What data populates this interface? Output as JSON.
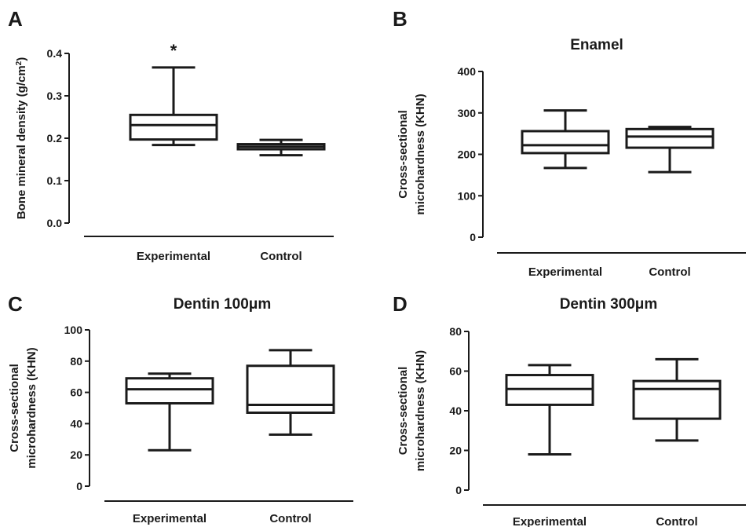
{
  "chart_data": [
    {
      "panel": "A",
      "type": "box",
      "title": "",
      "xlabel": "",
      "ylabel": "Bone mineral density (g/cm",
      "ylabel_sup": "2",
      "ylabel_close": ")",
      "ylim": [
        0,
        0.4
      ],
      "yticks": [
        0,
        0.1,
        0.2,
        0.3,
        0.4
      ],
      "ytick_labels": [
        "0.0",
        "0.1",
        "0.2",
        "0.3",
        "0.4"
      ],
      "categories": [
        "Experimental",
        "Control"
      ],
      "boxes": [
        {
          "min": 0.184,
          "q1": 0.197,
          "median": 0.231,
          "q3": 0.255,
          "max": 0.367,
          "annotation": "*"
        },
        {
          "min": 0.16,
          "q1": 0.174,
          "median": 0.18,
          "q3": 0.186,
          "max": 0.196,
          "annotation": ""
        }
      ]
    },
    {
      "panel": "B",
      "type": "box",
      "title": "Enamel",
      "xlabel": "",
      "ylabel_lines": [
        "Cross-sectional",
        "microhardness (KHN)"
      ],
      "ylim": [
        0,
        400
      ],
      "yticks": [
        0,
        100,
        200,
        300,
        400
      ],
      "ytick_labels": [
        "0",
        "100",
        "200",
        "300",
        "400"
      ],
      "categories": [
        "Experimental",
        "Control"
      ],
      "boxes": [
        {
          "min": 167,
          "q1": 203,
          "median": 222,
          "q3": 256,
          "max": 306
        },
        {
          "min": 157,
          "q1": 216,
          "median": 243,
          "q3": 261,
          "max": 266
        }
      ]
    },
    {
      "panel": "C",
      "type": "box",
      "title": "Dentin 100μm",
      "xlabel": "",
      "ylabel_lines": [
        "Cross-sectional",
        "microhardness (KHN)"
      ],
      "ylim": [
        0,
        100
      ],
      "yticks": [
        0,
        20,
        40,
        60,
        80,
        100
      ],
      "ytick_labels": [
        "0",
        "20",
        "40",
        "60",
        "80",
        "100"
      ],
      "categories": [
        "Experimental",
        "Control"
      ],
      "boxes": [
        {
          "min": 23,
          "q1": 53,
          "median": 62,
          "q3": 69,
          "max": 72
        },
        {
          "min": 33,
          "q1": 47,
          "median": 52,
          "q3": 77,
          "max": 87
        }
      ]
    },
    {
      "panel": "D",
      "type": "box",
      "title": "Dentin 300μm",
      "xlabel": "",
      "ylabel_lines": [
        "Cross-sectional",
        "microhardness (KHN)"
      ],
      "ylim": [
        0,
        80
      ],
      "yticks": [
        0,
        20,
        40,
        60,
        80
      ],
      "ytick_labels": [
        "0",
        "20",
        "40",
        "60",
        "80"
      ],
      "categories": [
        "Experimental",
        "Control"
      ],
      "boxes": [
        {
          "min": 18,
          "q1": 43,
          "median": 51,
          "q3": 58,
          "max": 63
        },
        {
          "min": 25,
          "q1": 36,
          "median": 51,
          "q3": 55,
          "max": 66
        }
      ]
    }
  ]
}
